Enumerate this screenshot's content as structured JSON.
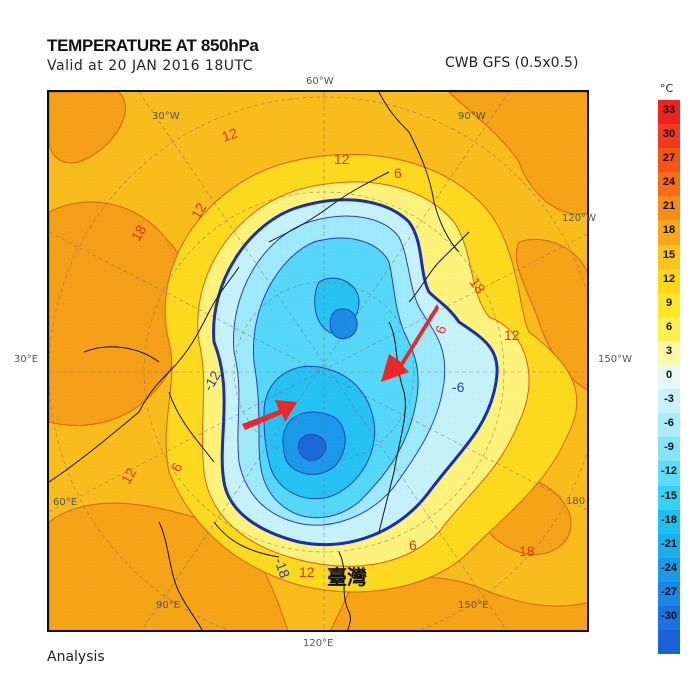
{
  "header": {
    "title": "TEMPERATURE AT 850hPa",
    "valid": "Valid at 20 JAN 2016 18UTC",
    "model": "CWB GFS (0.5x0.5)"
  },
  "footer": {
    "label": "Analysis"
  },
  "map": {
    "projection": "north-polar-stereographic",
    "lon_labels": {
      "top": "60°W",
      "top_left": "30°W",
      "top_right": "90°W",
      "right_upper": "120°W",
      "right": "150°W",
      "left": "30°E",
      "left_lower": "60°E",
      "bottom_left": "90°E",
      "bottom": "120°E",
      "bottom_right": "150°E",
      "right_lower": "180"
    },
    "annotation": "臺灣",
    "contour_labels": [
      "12",
      "6",
      "18",
      "12",
      "6",
      "12",
      "-6",
      "-12",
      "-18",
      "12",
      "6",
      "18",
      "6",
      "12",
      "18"
    ]
  },
  "colorbar": {
    "unit": "°C",
    "levels": [
      {
        "label": "33",
        "color": "#f0201a"
      },
      {
        "label": "30",
        "color": "#f33a1a"
      },
      {
        "label": "27",
        "color": "#f55518"
      },
      {
        "label": "24",
        "color": "#f76d16"
      },
      {
        "label": "21",
        "color": "#f88c18"
      },
      {
        "label": "18",
        "color": "#f8a81a"
      },
      {
        "label": "15",
        "color": "#f9c51a"
      },
      {
        "label": "12",
        "color": "#fbd71a"
      },
      {
        "label": "9",
        "color": "#fde52a"
      },
      {
        "label": "6",
        "color": "#fef050"
      },
      {
        "label": "3",
        "color": "#fff7a8"
      },
      {
        "label": "0",
        "color": "#e6f9f8"
      },
      {
        "label": "-3",
        "color": "#c8f3fb"
      },
      {
        "label": "-6",
        "color": "#a9ecfb"
      },
      {
        "label": "-9",
        "color": "#86e4fa"
      },
      {
        "label": "-12",
        "color": "#5ddcf8"
      },
      {
        "label": "-15",
        "color": "#34d2f6"
      },
      {
        "label": "-18",
        "color": "#1cc1f4"
      },
      {
        "label": "-21",
        "color": "#1aaef0"
      },
      {
        "label": "-24",
        "color": "#1a9aeb"
      },
      {
        "label": "-27",
        "color": "#1a86e6"
      },
      {
        "label": "-30",
        "color": "#1a72e0"
      },
      {
        "label": "",
        "color": "#1a62d8"
      }
    ]
  },
  "chart_data": {
    "type": "heatmap",
    "title": "TEMPERATURE AT 850hPa",
    "subtitle": "Valid at 20 JAN 2016 18UTC",
    "source": "CWB GFS (0.5x0.5)",
    "footer": "Analysis",
    "variable": "Temperature (°C) at 850 hPa",
    "colorbar_unit": "°C",
    "colorbar_ticks": [
      33,
      30,
      27,
      24,
      21,
      18,
      15,
      12,
      9,
      6,
      3,
      0,
      -3,
      -6,
      -9,
      -12,
      -15,
      -18,
      -21,
      -24,
      -27,
      -30
    ],
    "contour_interval": 6,
    "zero_contour": "thick dark blue",
    "annotations": [
      "Red arrow pointing to cold air over East Asia from west",
      "Red arrow pointing to cold air over East Asia from east",
      "臺灣 (Taiwan) label"
    ],
    "features": {
      "cold_core_min_approx": -30,
      "cold_core_location": "Siberia/East Asia",
      "warm_max_approx": 21
    }
  }
}
